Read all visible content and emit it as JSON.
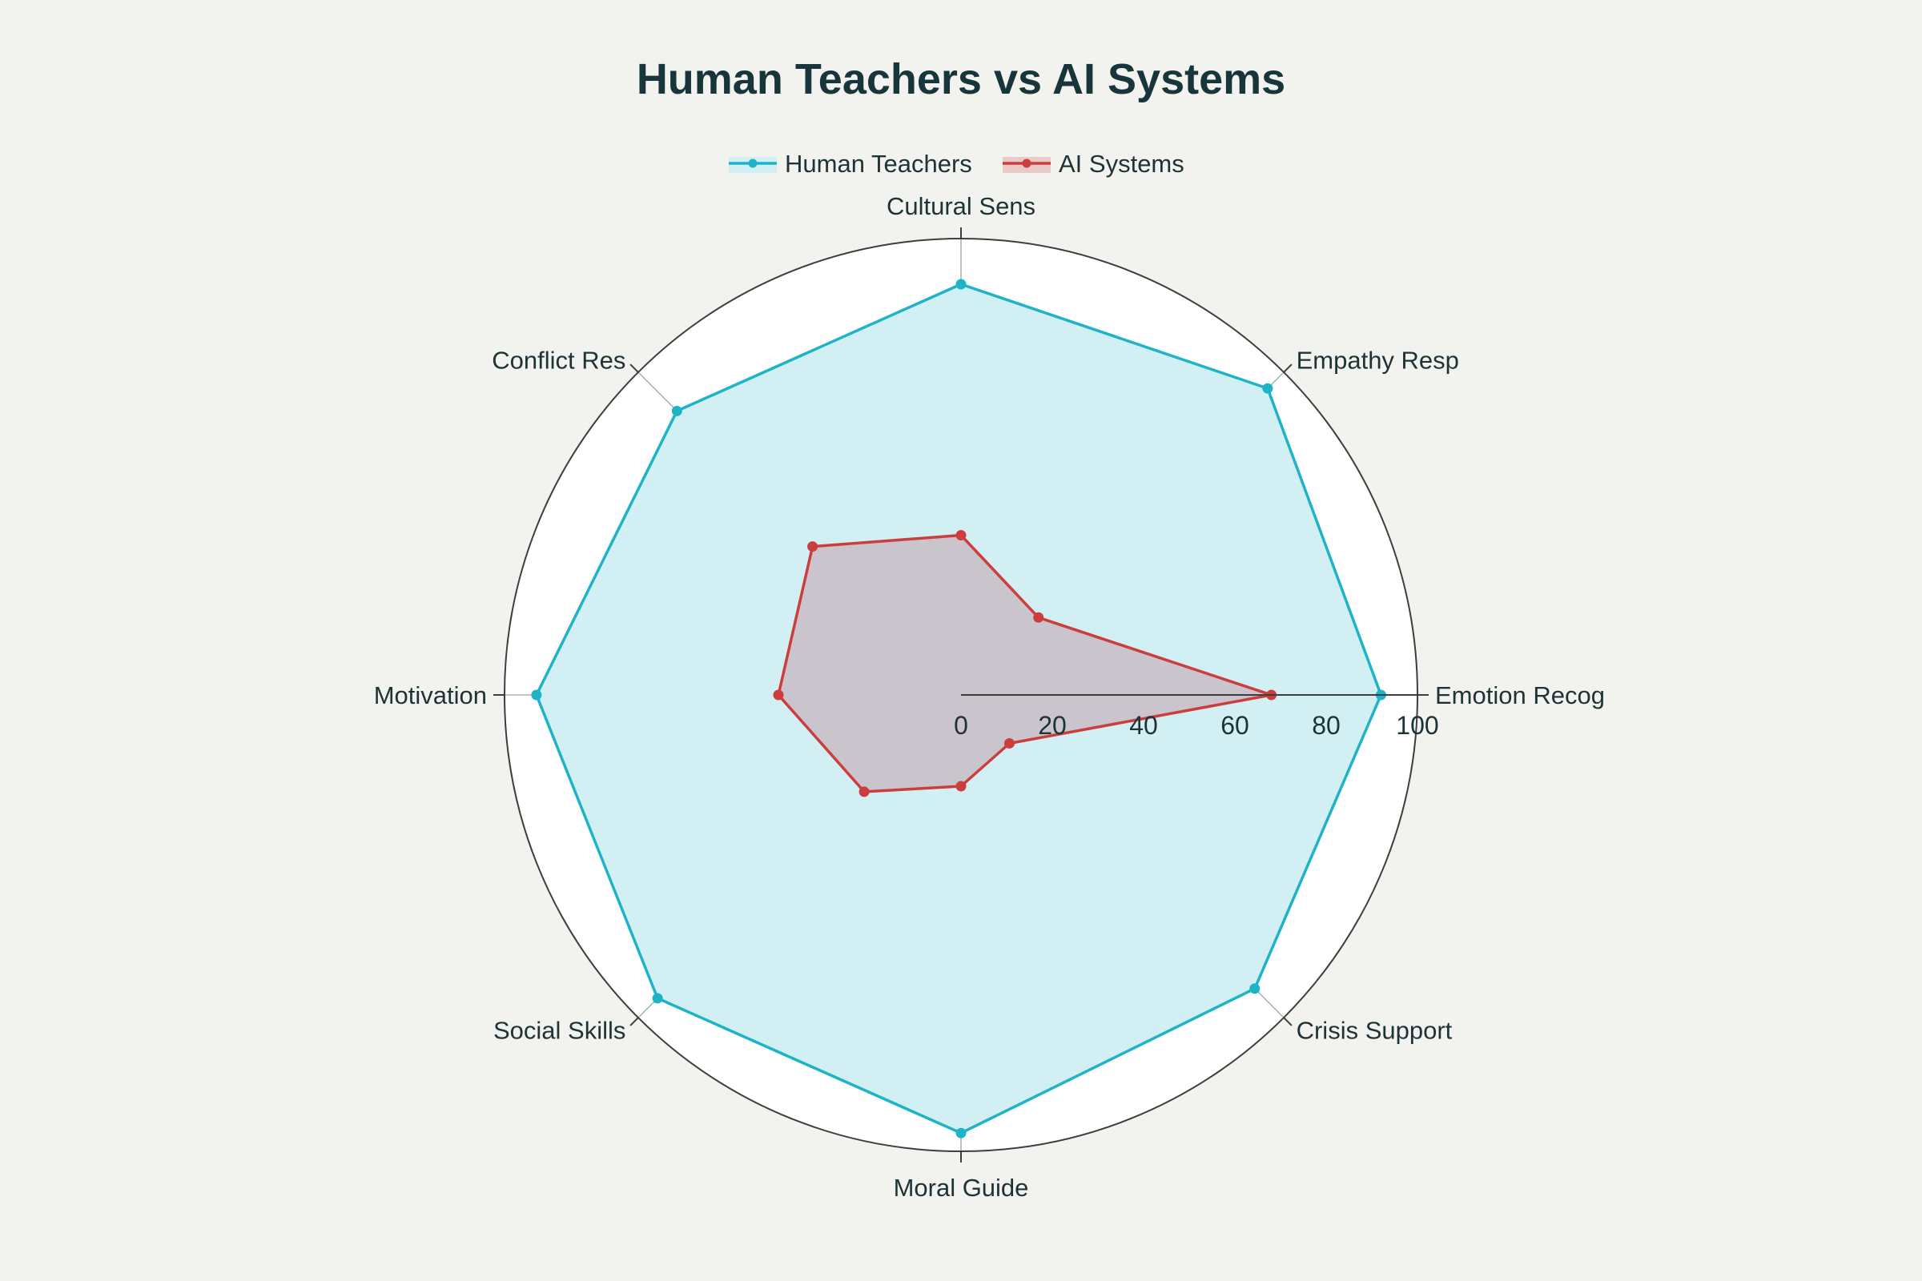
{
  "chart_data": {
    "type": "radar",
    "title": "Human Teachers vs AI Systems",
    "categories": [
      "Emotion Recog",
      "Empathy Resp",
      "Cultural Sens",
      "Conflict Res",
      "Motivation",
      "Social Skills",
      "Moral Guide",
      "Crisis Support"
    ],
    "series": [
      {
        "name": "Human Teachers",
        "color": "#1fb3c8",
        "fill": "#d2f0f3",
        "values": [
          92,
          95,
          90,
          88,
          93,
          94,
          96,
          91
        ]
      },
      {
        "name": "AI Systems",
        "color": "#cc3d3d",
        "fill": "#c9bcc4",
        "values": [
          68,
          24,
          35,
          46,
          40,
          30,
          20,
          15
        ]
      }
    ],
    "radial_range": [
      0,
      100
    ],
    "radial_ticks": [
      0,
      20,
      40,
      60,
      80,
      100
    ],
    "legend_position": "top-center",
    "grid": true
  }
}
